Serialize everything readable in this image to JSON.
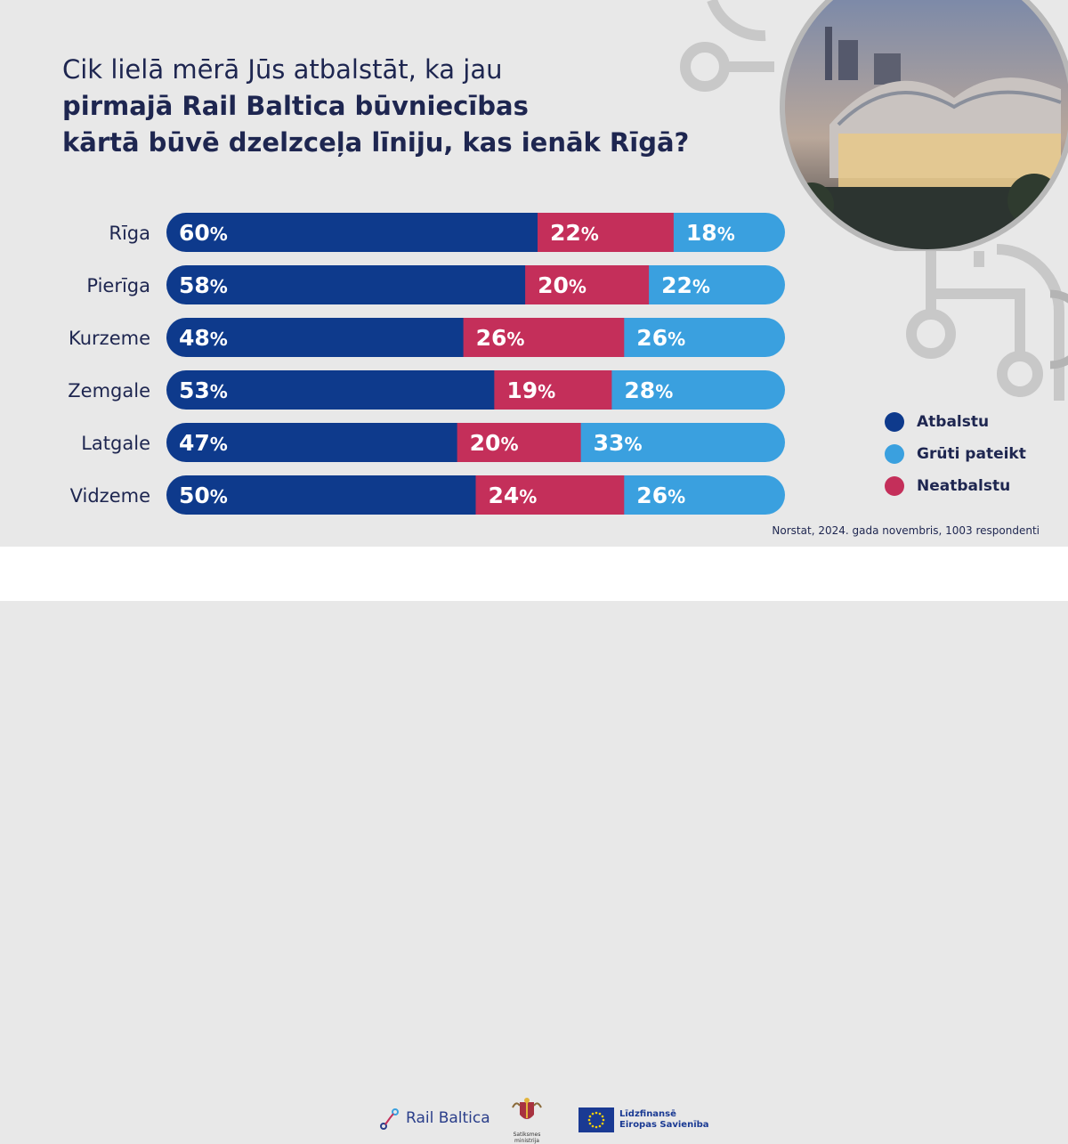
{
  "question": {
    "line1": "Cik lielā mērā Jūs atbalstāt, ka jau",
    "line2": "pirmajā Rail Baltica būvniecības",
    "line3": "kārtā būvē dzelzceļa līniju, kas ienāk Rīgā?"
  },
  "colors": {
    "atbalstu": "#0e3a8c",
    "neatbalstu": "#c42f5a",
    "gruti": "#3aa0df",
    "title": "#1e2650"
  },
  "chart_data": {
    "type": "bar",
    "orientation": "horizontal",
    "stacked": true,
    "title": "Cik lielā mērā Jūs atbalstāt, ka jau pirmajā Rail Baltica būvniecības kārtā būvē dzelzceļa līniju, kas ienāk Rīgā?",
    "categories": [
      "Rīga",
      "Pierīga",
      "Kurzeme",
      "Zemgale",
      "Latgale",
      "Vidzeme"
    ],
    "series": [
      {
        "name": "Atbalstu",
        "values": [
          60,
          58,
          48,
          53,
          47,
          50
        ]
      },
      {
        "name": "Neatbalstu",
        "values": [
          22,
          20,
          26,
          19,
          20,
          24
        ]
      },
      {
        "name": "Grūti pateikt",
        "values": [
          18,
          22,
          26,
          28,
          33,
          26
        ]
      }
    ],
    "unit": "%",
    "xlim": [
      0,
      100
    ]
  },
  "legend": {
    "items": [
      {
        "label": "Atbalstu",
        "color": "#0e3a8c"
      },
      {
        "label": "Grūti pateikt",
        "color": "#3aa0df"
      },
      {
        "label": "Neatbalstu",
        "color": "#c42f5a"
      }
    ]
  },
  "source": "Norstat, 2024. gada novembris, 1003 respondenti",
  "footer": {
    "railbaltica": "Rail Baltica",
    "ministry": "Satiksmes ministrija",
    "eu_line1": "Līdzfinansē",
    "eu_line2": "Eiropas Savienība"
  }
}
